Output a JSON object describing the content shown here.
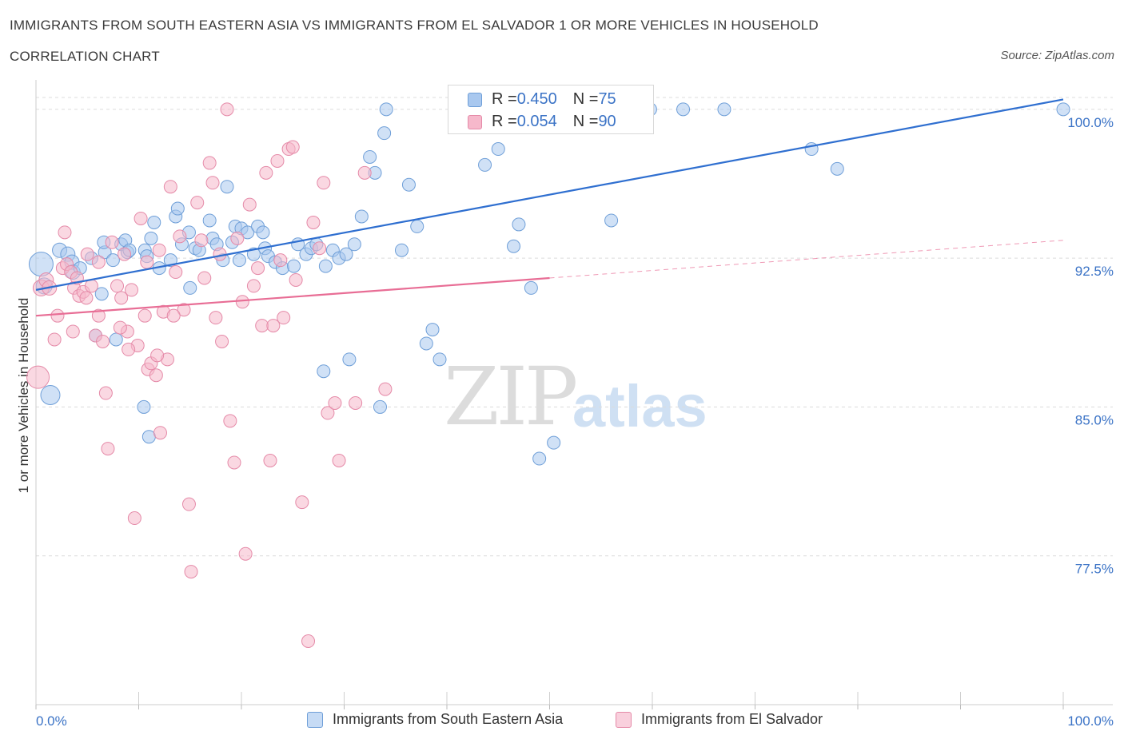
{
  "header": {
    "title": "IMMIGRANTS FROM SOUTH EASTERN ASIA VS IMMIGRANTS FROM EL SALVADOR 1 OR MORE VEHICLES IN HOUSEHOLD",
    "subtitle": "CORRELATION CHART",
    "source": "Source: ZipAtlas.com"
  },
  "watermark": {
    "zip": "ZIP",
    "atlas": "atlas"
  },
  "stats": {
    "blue": {
      "r_label": "R = ",
      "r_value": "0.450",
      "n_label": "N = ",
      "n_value": "75"
    },
    "pink": {
      "r_label": "R = ",
      "r_value": "0.054",
      "n_label": "N = ",
      "n_value": "90"
    }
  },
  "legend": {
    "blue": "Immigrants from South Eastern Asia",
    "pink": "Immigrants from El Salvador"
  },
  "colors": {
    "blue_fill": "#a9c8ef",
    "blue_stroke": "#6f9fd8",
    "blue_line": "#2f6fd0",
    "pink_fill": "#f6b8cb",
    "pink_stroke": "#e58aa8",
    "pink_line": "#e86d95",
    "tick_text": "#3b73c6",
    "grid": "#dcdcdc"
  },
  "chart_data": {
    "type": "scatter",
    "xlabel": "",
    "ylabel": "1 or more Vehicles in Household",
    "xlim": [
      0,
      100
    ],
    "ylim": [
      70.0,
      100.8
    ],
    "x_tick_labels": [
      {
        "value": 0,
        "label": "0.0%"
      },
      {
        "value": 100,
        "label": "100.0%"
      }
    ],
    "y_tick_labels": [
      {
        "value": 100.0,
        "label": "100.0%"
      },
      {
        "value": 92.5,
        "label": "92.5%"
      },
      {
        "value": 85.0,
        "label": "85.0%"
      },
      {
        "value": 77.5,
        "label": "77.5%"
      }
    ],
    "grid": true,
    "series": [
      {
        "name": "Immigrants from South Eastern Asia",
        "color": "#a9c8ef",
        "trend": {
          "x": [
            0,
            100
          ],
          "y": [
            90.9,
            100.5
          ],
          "solid_to": 100
        },
        "points": [
          [
            0.5,
            92.2,
            28
          ],
          [
            0.8,
            91.1,
            18
          ],
          [
            1.4,
            85.6,
            22
          ],
          [
            2.3,
            92.9,
            16
          ],
          [
            3.1,
            92.7,
            16
          ],
          [
            3.5,
            92.3,
            16
          ],
          [
            3.6,
            91.8,
            16
          ],
          [
            4.3,
            92.0,
            14
          ],
          [
            5.4,
            92.5,
            14
          ],
          [
            5.8,
            88.6,
            14
          ],
          [
            6.7,
            92.8,
            14
          ],
          [
            6.4,
            90.7,
            14
          ],
          [
            6.6,
            93.3,
            14
          ],
          [
            7.5,
            92.4,
            14
          ],
          [
            7.8,
            88.4,
            14
          ],
          [
            8.3,
            93.2,
            14
          ],
          [
            8.7,
            93.4,
            14
          ],
          [
            8.9,
            92.8,
            14
          ],
          [
            9.1,
            92.9,
            14
          ],
          [
            10.6,
            92.9,
            14
          ],
          [
            10.8,
            92.6,
            14
          ],
          [
            11.2,
            93.5,
            14
          ],
          [
            11.5,
            94.3,
            14
          ],
          [
            12.0,
            92.0,
            14
          ],
          [
            13.1,
            92.4,
            14
          ],
          [
            13.6,
            94.6,
            14
          ],
          [
            13.8,
            95.0,
            14
          ],
          [
            14.2,
            93.2,
            14
          ],
          [
            14.9,
            93.8,
            14
          ],
          [
            15.5,
            93.0,
            14
          ],
          [
            15.9,
            92.9,
            14
          ],
          [
            16.9,
            94.4,
            14
          ],
          [
            17.2,
            93.5,
            14
          ],
          [
            17.6,
            93.2,
            14
          ],
          [
            18.2,
            92.4,
            14
          ],
          [
            18.6,
            96.1,
            14
          ],
          [
            19.1,
            93.3,
            14
          ],
          [
            19.4,
            94.1,
            14
          ],
          [
            19.8,
            92.4,
            14
          ],
          [
            20.0,
            94.0,
            14
          ],
          [
            20.6,
            93.8,
            14
          ],
          [
            21.2,
            92.7,
            14
          ],
          [
            21.6,
            94.1,
            14
          ],
          [
            22.1,
            93.8,
            14
          ],
          [
            22.3,
            93.0,
            14
          ],
          [
            22.6,
            92.6,
            14
          ],
          [
            23.3,
            92.3,
            14
          ],
          [
            24.0,
            92.0,
            14
          ],
          [
            25.1,
            92.1,
            14
          ],
          [
            25.5,
            93.2,
            14
          ],
          [
            26.3,
            92.7,
            14
          ],
          [
            26.8,
            93.0,
            14
          ],
          [
            27.3,
            93.2,
            14
          ],
          [
            28.2,
            92.1,
            14
          ],
          [
            28.9,
            92.9,
            14
          ],
          [
            29.5,
            92.5,
            14
          ],
          [
            30.2,
            92.7,
            14
          ],
          [
            31.0,
            93.2,
            14
          ],
          [
            31.7,
            94.6,
            14
          ],
          [
            32.5,
            97.6,
            14
          ],
          [
            33.0,
            96.8,
            14
          ],
          [
            33.9,
            98.8,
            14
          ],
          [
            34.1,
            100.0,
            14
          ],
          [
            35.6,
            92.9,
            14
          ],
          [
            36.3,
            96.2,
            14
          ],
          [
            37.1,
            94.1,
            14
          ],
          [
            38.0,
            88.2,
            14
          ],
          [
            38.6,
            88.9,
            14
          ],
          [
            39.3,
            87.4,
            14
          ],
          [
            43.7,
            97.2,
            14
          ],
          [
            45.0,
            98.0,
            14
          ],
          [
            46.5,
            93.1,
            14
          ],
          [
            47.0,
            94.2,
            14
          ],
          [
            48.2,
            91.0,
            14
          ],
          [
            49.0,
            82.4,
            14
          ],
          [
            50.0,
            100.0,
            14
          ],
          [
            50.4,
            83.2,
            14
          ],
          [
            56.0,
            94.4,
            14
          ],
          [
            59.8,
            100.0,
            14
          ],
          [
            63.0,
            100.0,
            14
          ],
          [
            67.0,
            100.0,
            14
          ],
          [
            75.5,
            98.0,
            14
          ],
          [
            78.0,
            97.0,
            14
          ],
          [
            100.0,
            100.0,
            14
          ],
          [
            28.0,
            86.8,
            14
          ],
          [
            30.5,
            87.4,
            14
          ],
          [
            33.5,
            85.0,
            14
          ],
          [
            10.5,
            85.0,
            14
          ],
          [
            11.0,
            83.5,
            14
          ],
          [
            15.0,
            91.0,
            14
          ]
        ]
      },
      {
        "name": "Immigrants from El Salvador",
        "color": "#f6b8cb",
        "trend": {
          "x": [
            0,
            100
          ],
          "y": [
            89.6,
            93.4
          ],
          "solid_to": 50
        },
        "points": [
          [
            0.2,
            86.5,
            26
          ],
          [
            0.5,
            91.0,
            18
          ],
          [
            1.0,
            91.4,
            16
          ],
          [
            1.3,
            91.0,
            16
          ],
          [
            1.8,
            88.4,
            14
          ],
          [
            2.1,
            89.6,
            14
          ],
          [
            2.6,
            92.0,
            14
          ],
          [
            2.8,
            93.8,
            14
          ],
          [
            3.0,
            92.2,
            14
          ],
          [
            3.4,
            91.8,
            14
          ],
          [
            3.7,
            91.0,
            14
          ],
          [
            4.0,
            91.5,
            14
          ],
          [
            4.2,
            90.6,
            14
          ],
          [
            4.6,
            90.8,
            14
          ],
          [
            5.0,
            92.7,
            14
          ],
          [
            5.4,
            91.1,
            14
          ],
          [
            5.8,
            88.6,
            14
          ],
          [
            6.1,
            89.6,
            14
          ],
          [
            6.5,
            88.3,
            14
          ],
          [
            6.8,
            85.7,
            14
          ],
          [
            7.0,
            82.9,
            14
          ],
          [
            7.4,
            93.3,
            14
          ],
          [
            7.9,
            91.1,
            14
          ],
          [
            8.3,
            90.5,
            14
          ],
          [
            8.6,
            92.7,
            14
          ],
          [
            8.9,
            88.8,
            14
          ],
          [
            9.3,
            90.9,
            14
          ],
          [
            9.6,
            79.4,
            14
          ],
          [
            9.9,
            88.1,
            14
          ],
          [
            10.2,
            94.5,
            14
          ],
          [
            10.6,
            89.6,
            14
          ],
          [
            10.9,
            86.9,
            14
          ],
          [
            11.2,
            87.2,
            14
          ],
          [
            11.7,
            86.6,
            14
          ],
          [
            12.0,
            92.9,
            14
          ],
          [
            12.4,
            89.8,
            14
          ],
          [
            12.8,
            87.4,
            14
          ],
          [
            13.1,
            96.1,
            14
          ],
          [
            13.6,
            91.8,
            14
          ],
          [
            14.0,
            93.6,
            14
          ],
          [
            14.4,
            89.9,
            14
          ],
          [
            14.9,
            80.1,
            14
          ],
          [
            15.1,
            76.7,
            14
          ],
          [
            15.7,
            95.3,
            14
          ],
          [
            16.1,
            93.4,
            14
          ],
          [
            16.4,
            91.5,
            14
          ],
          [
            16.9,
            97.3,
            14
          ],
          [
            17.2,
            96.3,
            14
          ],
          [
            17.5,
            89.5,
            14
          ],
          [
            17.9,
            92.7,
            14
          ],
          [
            18.1,
            88.3,
            14
          ],
          [
            18.6,
            100.0,
            14
          ],
          [
            18.9,
            84.3,
            14
          ],
          [
            19.3,
            82.2,
            14
          ],
          [
            19.6,
            93.5,
            14
          ],
          [
            20.1,
            90.3,
            14
          ],
          [
            20.4,
            77.6,
            14
          ],
          [
            20.8,
            95.2,
            14
          ],
          [
            21.2,
            91.1,
            14
          ],
          [
            21.6,
            92.0,
            14
          ],
          [
            22.0,
            89.1,
            14
          ],
          [
            22.4,
            96.8,
            14
          ],
          [
            22.8,
            82.3,
            14
          ],
          [
            23.1,
            89.1,
            14
          ],
          [
            23.5,
            97.4,
            14
          ],
          [
            23.8,
            92.4,
            14
          ],
          [
            24.1,
            89.5,
            14
          ],
          [
            24.6,
            98.0,
            14
          ],
          [
            25.0,
            98.1,
            14
          ],
          [
            25.3,
            91.4,
            14
          ],
          [
            25.9,
            80.2,
            14
          ],
          [
            26.5,
            73.2,
            14
          ],
          [
            27.0,
            94.3,
            14
          ],
          [
            27.6,
            93.0,
            14
          ],
          [
            28.0,
            96.3,
            14
          ],
          [
            28.4,
            84.7,
            14
          ],
          [
            29.1,
            85.2,
            14
          ],
          [
            29.5,
            82.3,
            14
          ],
          [
            31.1,
            85.2,
            14
          ],
          [
            32.0,
            96.8,
            14
          ],
          [
            34.0,
            85.9,
            14
          ],
          [
            12.1,
            83.7,
            14
          ],
          [
            13.4,
            89.6,
            14
          ],
          [
            4.9,
            90.5,
            14
          ],
          [
            6.1,
            92.3,
            14
          ],
          [
            8.2,
            89.0,
            14
          ],
          [
            9.0,
            87.9,
            14
          ],
          [
            10.8,
            92.3,
            14
          ],
          [
            3.6,
            88.8,
            14
          ],
          [
            11.8,
            87.6,
            14
          ]
        ]
      }
    ]
  }
}
